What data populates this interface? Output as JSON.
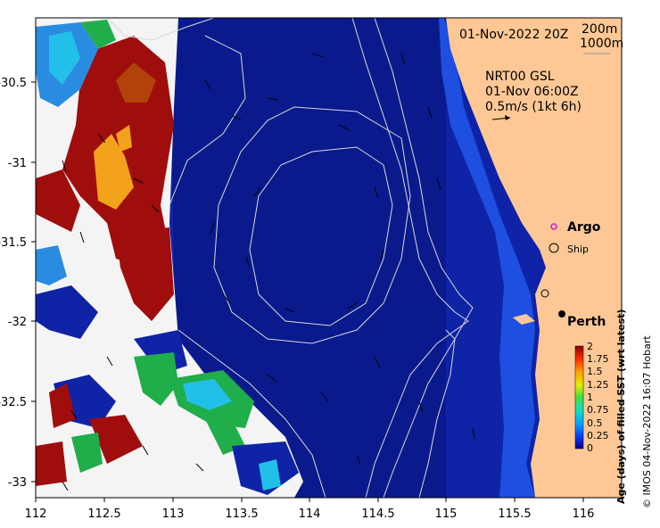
{
  "header": {
    "date_label": "01-Nov-2022 20Z",
    "contour_200": "200m",
    "contour_1000": "1000m"
  },
  "current_info": {
    "product": "NRT00 GSL",
    "time": "01-Nov 06:00Z",
    "scale": "0.5m/s (1kt 6h)"
  },
  "legend": {
    "argo": "Argo",
    "ship": "Ship"
  },
  "place": {
    "city": "Perth"
  },
  "axes": {
    "lon_ticks": [
      "112",
      "112.5",
      "113",
      "113.5",
      "114",
      "114.5",
      "115",
      "115.5",
      "116"
    ],
    "lat_ticks": [
      "-30.5",
      "-31",
      "-31.5",
      "-32",
      "-32.5",
      "-33"
    ]
  },
  "colorbar": {
    "title": "Age (days) of filled SST (wrt latest)",
    "ticks": [
      "2",
      "1.75",
      "1.5",
      "1.25",
      "1",
      "0.75",
      "0.5",
      "0.25",
      "0"
    ]
  },
  "credit": "© IMOS 04-Nov-2022 16:07 Hobart",
  "colors": {
    "land": "#fdc896",
    "ocean_deep": "#0a1a8c",
    "ocean_mid": "#0e23a6",
    "coastal_band": "#1f4fe0",
    "age_red": "#a00d0d",
    "age_orange": "#f3a21b",
    "age_green": "#1fae4a",
    "age_cyan": "#22c0e8",
    "argo": "#d21ad2"
  }
}
